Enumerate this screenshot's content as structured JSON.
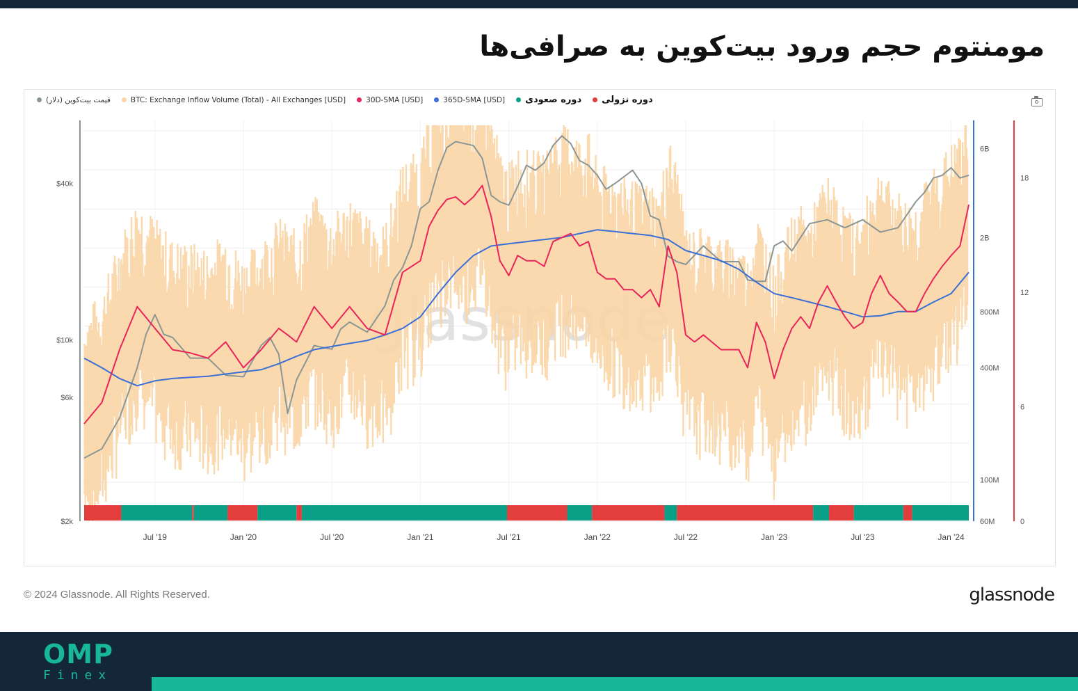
{
  "page": {
    "title": "مومنتوم حجم ورود بیت‌کوین به صرافی‌ها",
    "copyright": "© 2024 Glassnode. All Rights Reserved.",
    "brand": "glassnode"
  },
  "logo": {
    "main": "OMP",
    "sub": "Finex"
  },
  "colors": {
    "price": "#8a9694",
    "inflow": "#fbd5a6",
    "sma30": "#e8245a",
    "sma365": "#3a6fd6",
    "bull": "#0aa088",
    "bear": "#e43d3d",
    "footer": "#13263a",
    "accent": "#18b69b"
  },
  "legend": [
    {
      "label": "قیمت بیت‌کوین (دلار)",
      "color": "#8a9694",
      "rtl": true,
      "bold": false
    },
    {
      "label": "BTC: Exchange Inflow Volume (Total) - All Exchanges [USD]",
      "color": "#fbd5a6",
      "rtl": false,
      "bold": false
    },
    {
      "label": "30D-SMA [USD]",
      "color": "#e8245a",
      "rtl": false,
      "bold": false
    },
    {
      "label": "365D-SMA [USD]",
      "color": "#3a6fd6",
      "rtl": false,
      "bold": false
    },
    {
      "label": "دوره صعودی",
      "color": "#0aa088",
      "rtl": true,
      "bold": true
    },
    {
      "label": "دوره نزولی",
      "color": "#e43d3d",
      "rtl": true,
      "bold": true
    }
  ],
  "chart_data": {
    "type": "line",
    "watermark": "glassnode",
    "x_ticks": [
      "Jul '19",
      "Jan '20",
      "Jul '20",
      "Jan '21",
      "Jul '21",
      "Jan '22",
      "Jul '22",
      "Jan '23",
      "Jul '23",
      "Jan '24"
    ],
    "x_tick_years": [
      2019.5,
      2020.0,
      2020.5,
      2021.0,
      2021.5,
      2022.0,
      2022.5,
      2023.0,
      2023.5,
      2024.0
    ],
    "x_range": [
      2019.1,
      2024.1
    ],
    "y_left": {
      "scale": "log",
      "ticks": [
        "$40k",
        "$10k",
        "$6k",
        "$2k"
      ],
      "tick_values": [
        40000,
        10000,
        6000,
        2000
      ]
    },
    "y_right_volume": {
      "scale": "log",
      "ticks": [
        "6B",
        "2B",
        "800M",
        "400M",
        "100M",
        "60M"
      ],
      "tick_values": [
        6000000000,
        2000000000,
        800000000,
        400000000,
        100000000,
        60000000
      ]
    },
    "y_right_period": {
      "ticks": [
        "18",
        "12",
        "6",
        "0"
      ],
      "tick_values": [
        18,
        12,
        6,
        0
      ],
      "range": [
        0,
        21
      ]
    },
    "series": [
      {
        "name": "قیمت بیت‌کوین (دلار)",
        "x": [
          2019.1,
          2019.2,
          2019.3,
          2019.4,
          2019.45,
          2019.5,
          2019.55,
          2019.6,
          2019.7,
          2019.8,
          2019.9,
          2020.0,
          2020.1,
          2020.15,
          2020.2,
          2020.25,
          2020.3,
          2020.4,
          2020.5,
          2020.55,
          2020.6,
          2020.7,
          2020.8,
          2020.85,
          2020.9,
          2020.95,
          2021.0,
          2021.05,
          2021.1,
          2021.15,
          2021.2,
          2021.25,
          2021.3,
          2021.35,
          2021.4,
          2021.45,
          2021.5,
          2021.55,
          2021.6,
          2021.65,
          2021.7,
          2021.75,
          2021.8,
          2021.85,
          2021.9,
          2021.95,
          2022.0,
          2022.05,
          2022.1,
          2022.2,
          2022.25,
          2022.3,
          2022.35,
          2022.4,
          2022.45,
          2022.5,
          2022.6,
          2022.7,
          2022.8,
          2022.85,
          2022.9,
          2022.95,
          2023.0,
          2023.05,
          2023.1,
          2023.2,
          2023.3,
          2023.4,
          2023.5,
          2023.6,
          2023.7,
          2023.8,
          2023.85,
          2023.9,
          2023.95,
          2024.0,
          2024.05,
          2024.1
        ],
        "values": [
          3500,
          3800,
          5000,
          7800,
          10500,
          12500,
          10500,
          10200,
          8500,
          8500,
          7300,
          7200,
          9500,
          10200,
          8800,
          5200,
          7000,
          9500,
          9200,
          11000,
          11700,
          10700,
          13500,
          17000,
          19000,
          23000,
          32000,
          34000,
          45000,
          55000,
          58000,
          57000,
          56000,
          50000,
          36000,
          34000,
          33000,
          39000,
          47000,
          45000,
          48000,
          56000,
          61000,
          57000,
          49000,
          47000,
          43000,
          38000,
          40000,
          45000,
          40000,
          30000,
          29000,
          21000,
          20000,
          19500,
          23000,
          20000,
          20000,
          17000,
          16800,
          16800,
          23000,
          24000,
          22000,
          28000,
          29000,
          27000,
          29000,
          26000,
          27000,
          34000,
          37000,
          42000,
          43000,
          46000,
          42000,
          43000
        ]
      },
      {
        "name": "30D-SMA [USD]",
        "x": [
          2019.1,
          2019.2,
          2019.3,
          2019.4,
          2019.5,
          2019.6,
          2019.7,
          2019.8,
          2019.9,
          2020.0,
          2020.1,
          2020.2,
          2020.25,
          2020.3,
          2020.4,
          2020.5,
          2020.6,
          2020.7,
          2020.8,
          2020.9,
          2021.0,
          2021.05,
          2021.1,
          2021.15,
          2021.2,
          2021.25,
          2021.3,
          2021.35,
          2021.4,
          2021.45,
          2021.5,
          2021.55,
          2021.6,
          2021.65,
          2021.7,
          2021.75,
          2021.8,
          2021.85,
          2021.9,
          2021.95,
          2022.0,
          2022.05,
          2022.1,
          2022.15,
          2022.2,
          2022.25,
          2022.3,
          2022.35,
          2022.4,
          2022.45,
          2022.5,
          2022.55,
          2022.6,
          2022.7,
          2022.8,
          2022.85,
          2022.9,
          2022.95,
          2023.0,
          2023.05,
          2023.1,
          2023.15,
          2023.2,
          2023.25,
          2023.3,
          2023.35,
          2023.4,
          2023.45,
          2023.5,
          2023.55,
          2023.6,
          2023.65,
          2023.7,
          2023.75,
          2023.8,
          2023.85,
          2023.9,
          2023.95,
          2024.0,
          2024.05,
          2024.1
        ],
        "values": [
          200000000,
          260000000,
          500000000,
          850000000,
          650000000,
          500000000,
          480000000,
          450000000,
          550000000,
          400000000,
          500000000,
          650000000,
          600000000,
          550000000,
          850000000,
          650000000,
          850000000,
          650000000,
          600000000,
          1300000000,
          1500000000,
          2300000000,
          2800000000,
          3200000000,
          3300000000,
          3000000000,
          3300000000,
          3800000000,
          2600000000,
          1500000000,
          1250000000,
          1600000000,
          1500000000,
          1500000000,
          1400000000,
          1900000000,
          2000000000,
          2100000000,
          1800000000,
          1900000000,
          1300000000,
          1200000000,
          1200000000,
          1050000000,
          1050000000,
          950000000,
          1050000000,
          850000000,
          1800000000,
          1300000000,
          600000000,
          550000000,
          600000000,
          500000000,
          500000000,
          400000000,
          700000000,
          550000000,
          350000000,
          500000000,
          650000000,
          750000000,
          650000000,
          900000000,
          1100000000,
          900000000,
          750000000,
          650000000,
          700000000,
          1000000000,
          1250000000,
          1000000000,
          900000000,
          800000000,
          800000000,
          1000000000,
          1200000000,
          1400000000,
          1600000000,
          1800000000,
          3000000000
        ]
      },
      {
        "name": "365D-SMA [USD]",
        "x": [
          2019.1,
          2019.2,
          2019.3,
          2019.4,
          2019.5,
          2019.6,
          2019.7,
          2019.8,
          2019.9,
          2020.0,
          2020.1,
          2020.2,
          2020.3,
          2020.4,
          2020.5,
          2020.6,
          2020.7,
          2020.8,
          2020.9,
          2021.0,
          2021.1,
          2021.2,
          2021.3,
          2021.4,
          2021.5,
          2021.6,
          2021.7,
          2021.8,
          2021.9,
          2022.0,
          2022.1,
          2022.2,
          2022.3,
          2022.4,
          2022.5,
          2022.6,
          2022.7,
          2022.8,
          2022.9,
          2023.0,
          2023.1,
          2023.2,
          2023.3,
          2023.4,
          2023.5,
          2023.6,
          2023.7,
          2023.8,
          2023.9,
          2024.0,
          2024.1
        ],
        "values": [
          450000000,
          400000000,
          350000000,
          320000000,
          340000000,
          350000000,
          355000000,
          360000000,
          370000000,
          380000000,
          390000000,
          420000000,
          460000000,
          500000000,
          520000000,
          540000000,
          560000000,
          600000000,
          650000000,
          750000000,
          1000000000,
          1300000000,
          1600000000,
          1800000000,
          1850000000,
          1900000000,
          1950000000,
          2000000000,
          2100000000,
          2200000000,
          2150000000,
          2100000000,
          2050000000,
          1950000000,
          1700000000,
          1600000000,
          1500000000,
          1350000000,
          1150000000,
          1000000000,
          950000000,
          900000000,
          850000000,
          800000000,
          750000000,
          760000000,
          800000000,
          800000000,
          900000000,
          1000000000,
          1300000000
        ]
      }
    ],
    "inflow_volume_range": [
      60000000,
      6000000000
    ],
    "regime_bar": [
      {
        "start": 2019.1,
        "end": 2019.31,
        "state": "bear"
      },
      {
        "start": 2019.31,
        "end": 2019.71,
        "state": "bull"
      },
      {
        "start": 2019.71,
        "end": 2019.72,
        "state": "bear"
      },
      {
        "start": 2019.72,
        "end": 2019.91,
        "state": "bull"
      },
      {
        "start": 2019.91,
        "end": 2020.08,
        "state": "bear"
      },
      {
        "start": 2020.08,
        "end": 2020.3,
        "state": "bull"
      },
      {
        "start": 2020.3,
        "end": 2020.33,
        "state": "bear"
      },
      {
        "start": 2020.33,
        "end": 2021.49,
        "state": "bull"
      },
      {
        "start": 2021.49,
        "end": 2021.83,
        "state": "bear"
      },
      {
        "start": 2021.83,
        "end": 2021.97,
        "state": "bull"
      },
      {
        "start": 2021.97,
        "end": 2022.38,
        "state": "bear"
      },
      {
        "start": 2022.38,
        "end": 2022.45,
        "state": "bull"
      },
      {
        "start": 2022.45,
        "end": 2023.22,
        "state": "bear"
      },
      {
        "start": 2023.22,
        "end": 2023.31,
        "state": "bull"
      },
      {
        "start": 2023.31,
        "end": 2023.45,
        "state": "bear"
      },
      {
        "start": 2023.45,
        "end": 2023.73,
        "state": "bull"
      },
      {
        "start": 2023.73,
        "end": 2023.78,
        "state": "bear"
      },
      {
        "start": 2023.78,
        "end": 2024.1,
        "state": "bull"
      }
    ]
  }
}
